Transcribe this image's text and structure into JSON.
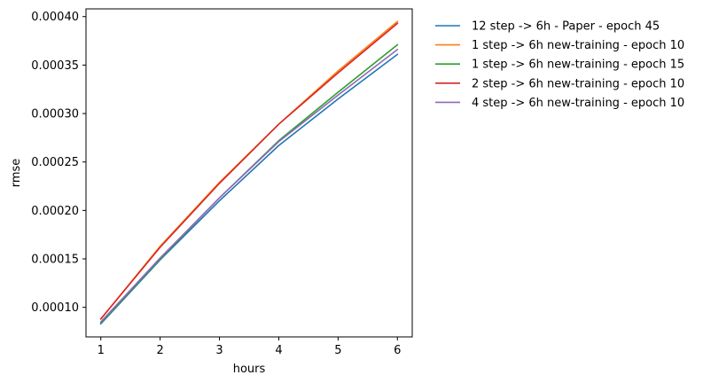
{
  "chart_data": {
    "type": "line",
    "xlabel": "hours",
    "ylabel": "rmse",
    "xlim": [
      0.75,
      6.25
    ],
    "ylim": [
      6.95e-05,
      0.000408
    ],
    "x_ticks": [
      1,
      2,
      3,
      4,
      5,
      6
    ],
    "y_ticks": [
      0.0001,
      0.00015,
      0.0002,
      0.00025,
      0.0003,
      0.00035,
      0.0004
    ],
    "y_tick_labels": [
      "0.00010",
      "0.00015",
      "0.00020",
      "0.00025",
      "0.00030",
      "0.00035",
      "0.00040"
    ],
    "x": [
      1,
      2,
      3,
      4,
      5,
      6
    ],
    "grid": false,
    "legend_position": "outside right, top",
    "series": [
      {
        "name": "12 step -> 6h - Paper - epoch 45",
        "color": "#1f77b4",
        "values": [
          8.3e-05,
          0.000149,
          0.00021,
          0.000267,
          0.000315,
          0.000361
        ]
      },
      {
        "name": "1 step -> 6h new-training - epoch 10",
        "color": "#ff7f0e",
        "values": [
          8.8e-05,
          0.000163,
          0.000229,
          0.000289,
          0.000344,
          0.000395
        ]
      },
      {
        "name": "1 step -> 6h new-training - epoch 15",
        "color": "#2ca02c",
        "values": [
          8.4e-05,
          0.00015,
          0.000213,
          0.000272,
          0.000322,
          0.000371
        ]
      },
      {
        "name": "2 step -> 6h new-training - epoch 10",
        "color": "#d62728",
        "values": [
          8.8e-05,
          0.000162,
          0.000228,
          0.000289,
          0.000342,
          0.000393
        ]
      },
      {
        "name": "4 step -> 6h new-training - epoch 10",
        "color": "#9467bd",
        "values": [
          8.5e-05,
          0.000151,
          0.000213,
          0.000271,
          0.000319,
          0.000366
        ]
      }
    ]
  }
}
